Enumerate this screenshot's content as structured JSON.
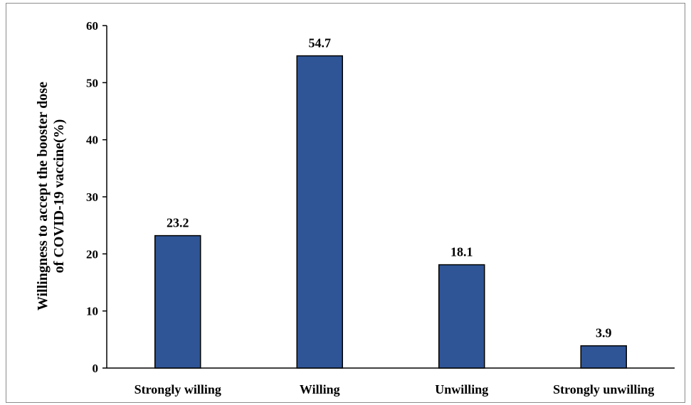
{
  "chart_data": {
    "type": "bar",
    "categories": [
      "Strongly willing",
      "Willing",
      "Unwilling",
      "Strongly unwilling"
    ],
    "values": [
      23.2,
      54.7,
      18.1,
      3.9
    ],
    "data_labels": [
      "23.2",
      "54.7",
      "18.1",
      "3.9"
    ],
    "title": "",
    "xlabel": "",
    "ylabel_lines": [
      "Willingness to accept the booster dose",
      "of COVID-19 vaccine(%)"
    ],
    "ylim": [
      0,
      60
    ],
    "yticks": [
      0,
      10,
      20,
      30,
      40,
      50,
      60
    ],
    "grid": false,
    "legend": "none",
    "colors": {
      "bar_fill": "#2f5597",
      "bar_stroke": "#000000",
      "axis": "#000000",
      "frame": "#8c8c8c"
    }
  }
}
